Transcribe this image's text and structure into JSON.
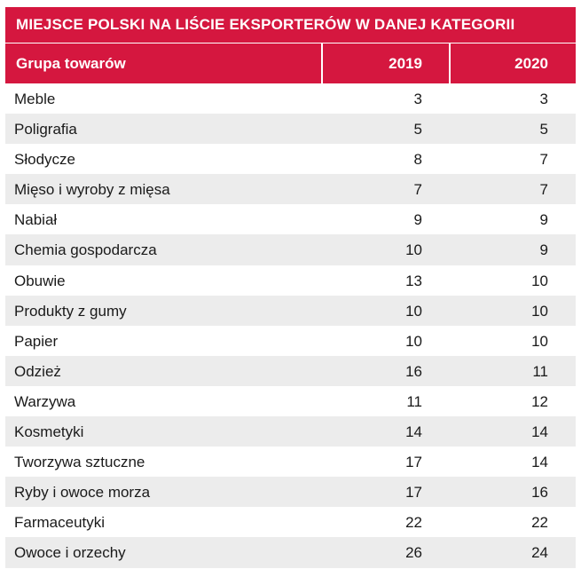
{
  "chart_data": {
    "type": "table",
    "title": "MIEJSCE POLSKI NA LIŚCIE EKSPORTERÓW W DANEJ KATEGORII",
    "columns": [
      "Grupa towarów",
      "2019",
      "2020"
    ],
    "rows": [
      {
        "name": "Meble",
        "y2019": "3",
        "y2020": "3"
      },
      {
        "name": "Poligrafia",
        "y2019": "5",
        "y2020": "5"
      },
      {
        "name": "Słodycze",
        "y2019": "8",
        "y2020": "7"
      },
      {
        "name": "Mięso i wyroby z mięsa",
        "y2019": "7",
        "y2020": "7"
      },
      {
        "name": "Nabiał",
        "y2019": "9",
        "y2020": "9"
      },
      {
        "name": "Chemia gospodarcza",
        "y2019": "10",
        "y2020": "9"
      },
      {
        "name": "Obuwie",
        "y2019": "13",
        "y2020": "10"
      },
      {
        "name": "Produkty z gumy",
        "y2019": "10",
        "y2020": "10"
      },
      {
        "name": "Papier",
        "y2019": "10",
        "y2020": "10"
      },
      {
        "name": "Odzież",
        "y2019": "16",
        "y2020": "11"
      },
      {
        "name": "Warzywa",
        "y2019": "11",
        "y2020": "12"
      },
      {
        "name": "Kosmetyki",
        "y2019": "14",
        "y2020": "14"
      },
      {
        "name": "Tworzywa sztuczne",
        "y2019": "17",
        "y2020": "14"
      },
      {
        "name": "Ryby i owoce morza",
        "y2019": "17",
        "y2020": "16"
      },
      {
        "name": "Farmaceutyki",
        "y2019": "22",
        "y2020": "22"
      },
      {
        "name": "Owoce i orzechy",
        "y2019": "26",
        "y2020": "24"
      }
    ]
  },
  "colors": {
    "accent": "#d5173f",
    "stripe": "#ececec"
  }
}
